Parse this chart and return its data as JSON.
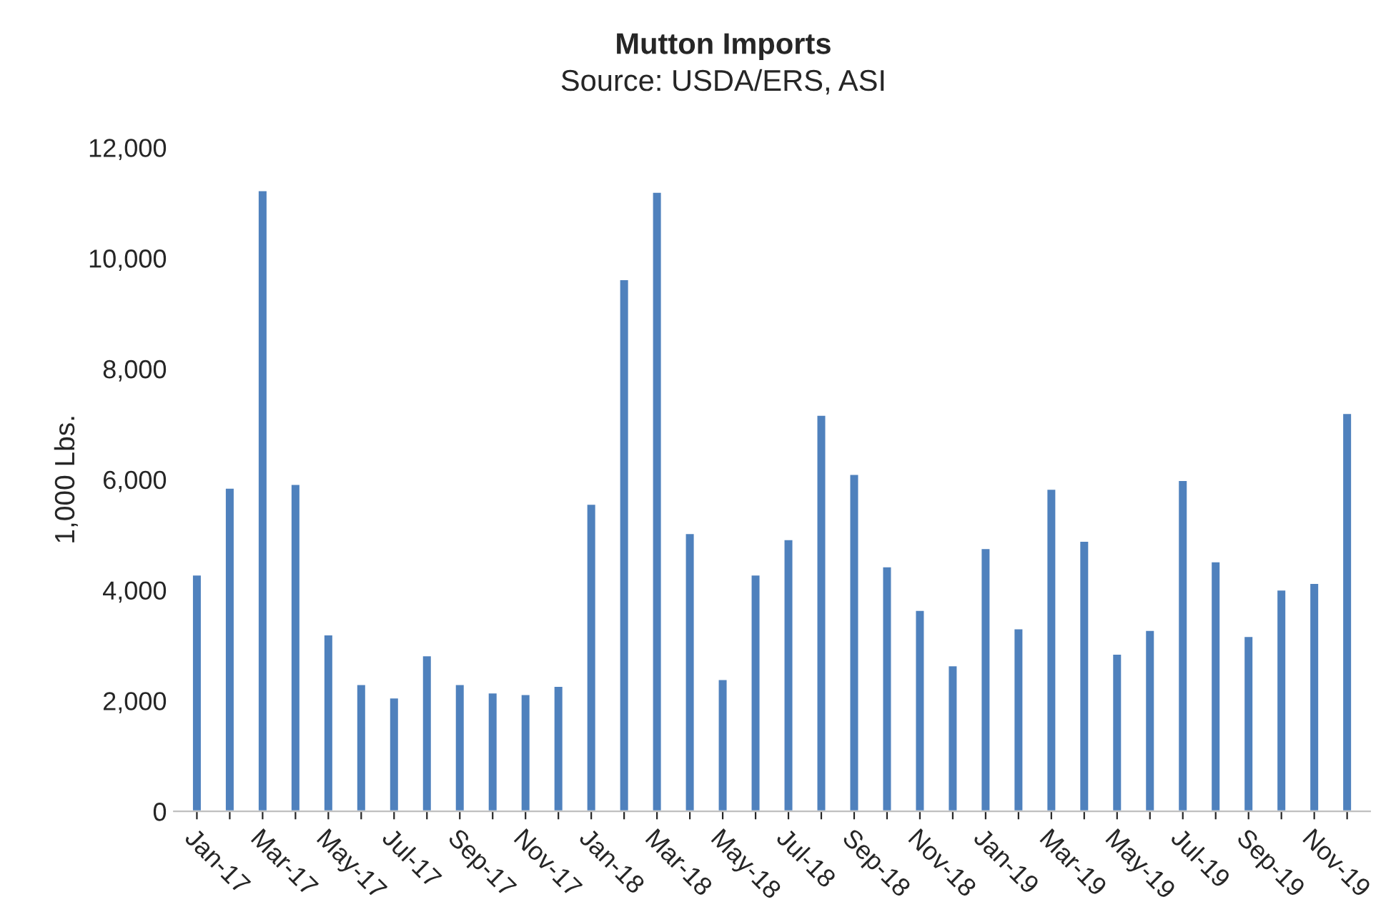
{
  "chart_data": {
    "type": "bar",
    "title": "Mutton Imports",
    "subtitle": "Source: USDA/ERS, ASI",
    "ylabel": "1,000 Lbs.",
    "categories": [
      "Jan-17",
      null,
      "Mar-17",
      null,
      "May-17",
      null,
      "Jul-17",
      null,
      "Sep-17",
      null,
      "Nov-17",
      null,
      "Jan-18",
      null,
      "Mar-18",
      null,
      "May-18",
      null,
      "Jul-18",
      null,
      "Sep-18",
      null,
      "Nov-18",
      null,
      "Jan-19",
      null,
      "Mar-19",
      null,
      "May-19",
      null,
      "Jul-19",
      null,
      "Sep-19",
      null,
      "Nov-19",
      null
    ],
    "values": [
      4280,
      5850,
      11230,
      5920,
      3200,
      2300,
      2060,
      2820,
      2300,
      2150,
      2120,
      2270,
      5560,
      9620,
      11200,
      5030,
      2390,
      4280,
      4920,
      7170,
      6100,
      4430,
      3640,
      2640,
      4760,
      3310,
      5830,
      4890,
      2850,
      3280,
      5990,
      4520,
      3170,
      4010,
      4130,
      7200
    ],
    "color": "#4f81bd",
    "ylim": [
      0,
      12000
    ],
    "yticks": [
      0,
      {
        "value": 2000,
        "label": "2,000"
      },
      {
        "value": 4000,
        "label": "4,000"
      },
      {
        "value": 6000,
        "label": "6,000"
      },
      {
        "value": 8000,
        "label": "8,000"
      },
      {
        "value": 10000,
        "label": "10,000"
      },
      {
        "value": 12000,
        "label": "12,000"
      }
    ],
    "grid": false
  }
}
